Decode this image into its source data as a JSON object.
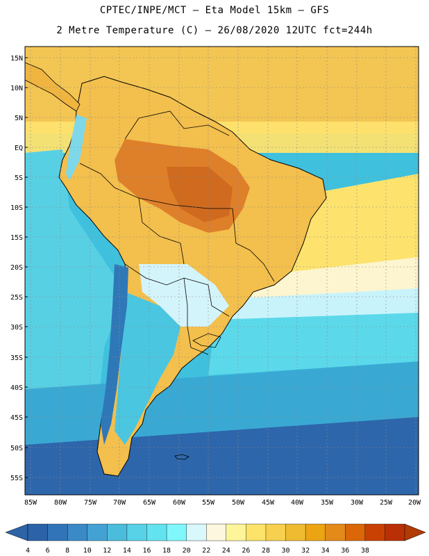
{
  "header": {
    "line1": "CPTEC/INPE/MCT –  Eta Model 15km – GFS",
    "line2": "2 Metre Temperature (C) – 26/08/2020 12UTC fct=244h"
  },
  "map": {
    "lat_labels": [
      "15N",
      "10N",
      "5N",
      "EQ",
      "5S",
      "10S",
      "15S",
      "20S",
      "25S",
      "30S",
      "35S",
      "40S",
      "45S",
      "50S",
      "55S"
    ],
    "lon_labels": [
      "85W",
      "80W",
      "75W",
      "70W",
      "65W",
      "60W",
      "55W",
      "50W",
      "45W",
      "40W",
      "35W",
      "30W",
      "25W",
      "20W"
    ],
    "ocean_color": "#3fc3de",
    "land_outline_color": "#000000"
  },
  "colorbar": {
    "ticks": [
      "4",
      "6",
      "8",
      "10",
      "12",
      "14",
      "16",
      "18",
      "20",
      "22",
      "24",
      "26",
      "28",
      "30",
      "32",
      "34",
      "36",
      "38"
    ],
    "colors": [
      "#2b62a8",
      "#3175b8",
      "#3b8ac8",
      "#43a2d3",
      "#4cbcdc",
      "#57d2e6",
      "#63e3ef",
      "#7ff7fb",
      "#d8f8fc",
      "#fdf7df",
      "#fdf59a",
      "#fde36a",
      "#f6d04e",
      "#eebb31",
      "#eca413",
      "#e38a1b",
      "#db6708",
      "#c94103",
      "#b93006"
    ],
    "low_arrow_color": "#2e63a6",
    "high_arrow_color": "#b13a05"
  }
}
